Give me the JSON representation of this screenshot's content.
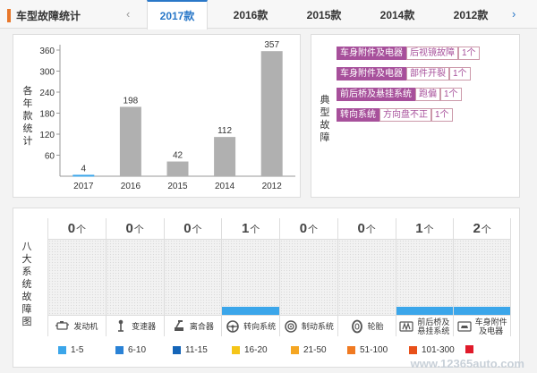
{
  "header": {
    "title": "车型故障统计",
    "prev_arrow": "‹",
    "next_arrow": "›",
    "tabs": [
      {
        "label": "2017款",
        "active": true
      },
      {
        "label": "2016款",
        "active": false
      },
      {
        "label": "2015款",
        "active": false
      },
      {
        "label": "2014款",
        "active": false
      },
      {
        "label": "2012款",
        "active": false
      }
    ]
  },
  "chart_panel": {
    "ylabel": "各年款统计",
    "chart_data": {
      "type": "bar",
      "categories": [
        "2017",
        "2016",
        "2015",
        "2014",
        "2012"
      ],
      "values": [
        4,
        198,
        42,
        112,
        357
      ],
      "data_labels": [
        "4",
        "198",
        "42",
        "112",
        "357"
      ],
      "yticks": [
        60,
        120,
        180,
        240,
        300,
        360
      ],
      "ylim": [
        0,
        360
      ],
      "colors": {
        "2017": "#3ba6ea",
        "default": "#b0b0b0"
      },
      "grid": false
    }
  },
  "typical_panel": {
    "label": "典型故障",
    "faults": [
      {
        "category": "车身附件及电器",
        "description": "后视镜故障",
        "count": "1个"
      },
      {
        "category": "车身附件及电器",
        "description": "部件开裂",
        "count": "1个"
      },
      {
        "category": "前后桥及悬挂系统",
        "description": "跑偏",
        "count": "1个"
      },
      {
        "category": "转向系统",
        "description": "方向盘不正",
        "count": "1个"
      }
    ]
  },
  "systems_panel": {
    "label": "八大系统故障图",
    "unit": "个",
    "systems": [
      {
        "name": "发动机",
        "count": "0",
        "level": 0,
        "icon": "engine-icon"
      },
      {
        "name": "变速器",
        "count": "0",
        "level": 0,
        "icon": "gear-shift-icon"
      },
      {
        "name": "离合器",
        "count": "0",
        "level": 0,
        "icon": "clutch-icon"
      },
      {
        "name": "转向系统",
        "count": "1",
        "level": 1,
        "icon": "steering-wheel-icon"
      },
      {
        "name": "制动系统",
        "count": "0",
        "level": 0,
        "icon": "brake-icon"
      },
      {
        "name": "轮胎",
        "count": "0",
        "level": 0,
        "icon": "tire-icon"
      },
      {
        "name": "前后桥及悬挂系统",
        "name_lines": [
          "前后桥及",
          "悬挂系统"
        ],
        "count": "1",
        "level": 1,
        "icon": "suspension-icon"
      },
      {
        "name": "车身附件及电器",
        "name_lines": [
          "车身附件",
          "及电器"
        ],
        "count": "2",
        "level": 1,
        "icon": "car-body-icon"
      }
    ],
    "legend": [
      {
        "label": "1-5",
        "color": "#3ba6ea"
      },
      {
        "label": "6-10",
        "color": "#2a82d6"
      },
      {
        "label": "11-15",
        "color": "#1565b8"
      },
      {
        "label": "16-20",
        "color": "#f5c518"
      },
      {
        "label": "21-50",
        "color": "#f5a623"
      },
      {
        "label": "51-100",
        "color": "#f07a22"
      },
      {
        "label": "101-300",
        "color": "#e8501a"
      },
      {
        "label": "",
        "color": "#e01a2a"
      }
    ]
  },
  "watermark": "www.12365auto.com"
}
